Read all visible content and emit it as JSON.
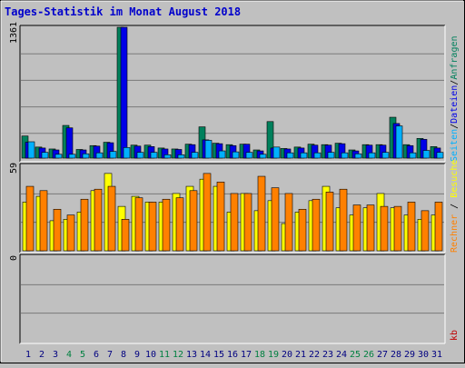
{
  "title": "Tages-Statistik im Monat August 2018",
  "colors": {
    "frame_light": "#ffffff",
    "frame_dark": "#000000",
    "plot_bg": "#c0c0c0",
    "gridline": "#7a7a7a",
    "title": "#0000cc",
    "anfragen": "#00805c",
    "dateien": "#0000e8",
    "seiten": "#00b0ff",
    "besuche": "#ffff00",
    "rechner": "#ff8000",
    "kb": "#c00000",
    "weekday_label": "#000080",
    "weekend_label": "#008040"
  },
  "chart_data": [
    {
      "type": "bar",
      "panel": "top",
      "ymax_label": "1361",
      "ylim": [
        0,
        1361
      ],
      "grid": true,
      "legend": [
        "Anfragen",
        "Dateien",
        "Seiten"
      ],
      "categories": [
        "1",
        "2",
        "3",
        "4",
        "5",
        "6",
        "7",
        "8",
        "9",
        "10",
        "11",
        "12",
        "13",
        "14",
        "15",
        "16",
        "17",
        "18",
        "19",
        "20",
        "21",
        "22",
        "23",
        "24",
        "25",
        "26",
        "27",
        "28",
        "29",
        "30",
        "31"
      ],
      "weekend": [
        4,
        5,
        11,
        12,
        18,
        19,
        25,
        26
      ],
      "series": [
        {
          "name": "Anfragen",
          "color_key": "anfragen",
          "values": [
            230,
            115,
            95,
            340,
            90,
            130,
            165,
            1361,
            135,
            135,
            105,
            95,
            145,
            325,
            155,
            140,
            145,
            85,
            380,
            100,
            115,
            145,
            140,
            155,
            85,
            140,
            140,
            425,
            140,
            205,
            120
          ]
        },
        {
          "name": "Dateien",
          "color_key": "dateien",
          "values": [
            165,
            105,
            85,
            315,
            85,
            125,
            160,
            1361,
            125,
            120,
            95,
            90,
            140,
            190,
            150,
            130,
            145,
            75,
            105,
            95,
            105,
            135,
            135,
            150,
            75,
            135,
            135,
            360,
            130,
            195,
            105
          ]
        },
        {
          "name": "Seiten",
          "color_key": "seiten",
          "values": [
            170,
            60,
            40,
            40,
            45,
            55,
            70,
            110,
            60,
            60,
            35,
            35,
            60,
            185,
            75,
            65,
            60,
            40,
            115,
            55,
            55,
            55,
            60,
            55,
            45,
            55,
            60,
            335,
            55,
            80,
            60
          ]
        }
      ]
    },
    {
      "type": "bar",
      "panel": "middle",
      "ymax_label": "59",
      "ylim": [
        0,
        59
      ],
      "grid": true,
      "legend": [
        "Besuche",
        "Rechner"
      ],
      "categories": [
        "1",
        "2",
        "3",
        "4",
        "5",
        "6",
        "7",
        "8",
        "9",
        "10",
        "11",
        "12",
        "13",
        "14",
        "15",
        "16",
        "17",
        "18",
        "19",
        "20",
        "21",
        "22",
        "23",
        "24",
        "25",
        "26",
        "27",
        "28",
        "29",
        "30",
        "31"
      ],
      "series": [
        {
          "name": "Besuche",
          "color_key": "besuche",
          "values": [
            34,
            38,
            21,
            22,
            27,
            42,
            54,
            31,
            38,
            34,
            34,
            40,
            45,
            50,
            45,
            27,
            40,
            28,
            35,
            19,
            27,
            35,
            45,
            30,
            25,
            30,
            40,
            30,
            25,
            22,
            25
          ]
        },
        {
          "name": "Rechner",
          "color_key": "rechner",
          "values": [
            45,
            42,
            29,
            25,
            36,
            43,
            45,
            22,
            37,
            34,
            36,
            37,
            42,
            54,
            48,
            40,
            40,
            52,
            44,
            40,
            29,
            36,
            41,
            43,
            32,
            32,
            31,
            31,
            34,
            28,
            34
          ]
        }
      ]
    },
    {
      "type": "bar",
      "panel": "bottom",
      "ymax_label": "0",
      "ylim": [
        0,
        1
      ],
      "grid": true,
      "legend": [
        "kb"
      ],
      "categories": [
        "1",
        "2",
        "3",
        "4",
        "5",
        "6",
        "7",
        "8",
        "9",
        "10",
        "11",
        "12",
        "13",
        "14",
        "15",
        "16",
        "17",
        "18",
        "19",
        "20",
        "21",
        "22",
        "23",
        "24",
        "25",
        "26",
        "27",
        "28",
        "29",
        "30",
        "31"
      ],
      "series": [
        {
          "name": "kb",
          "color_key": "kb",
          "values": [
            0,
            0,
            0,
            0,
            0,
            0,
            0,
            0,
            0,
            0,
            0,
            0,
            0,
            0,
            0,
            0,
            0,
            0,
            0,
            0,
            0,
            0,
            0,
            0,
            0,
            0,
            0,
            0,
            0,
            0,
            0
          ]
        }
      ]
    }
  ]
}
